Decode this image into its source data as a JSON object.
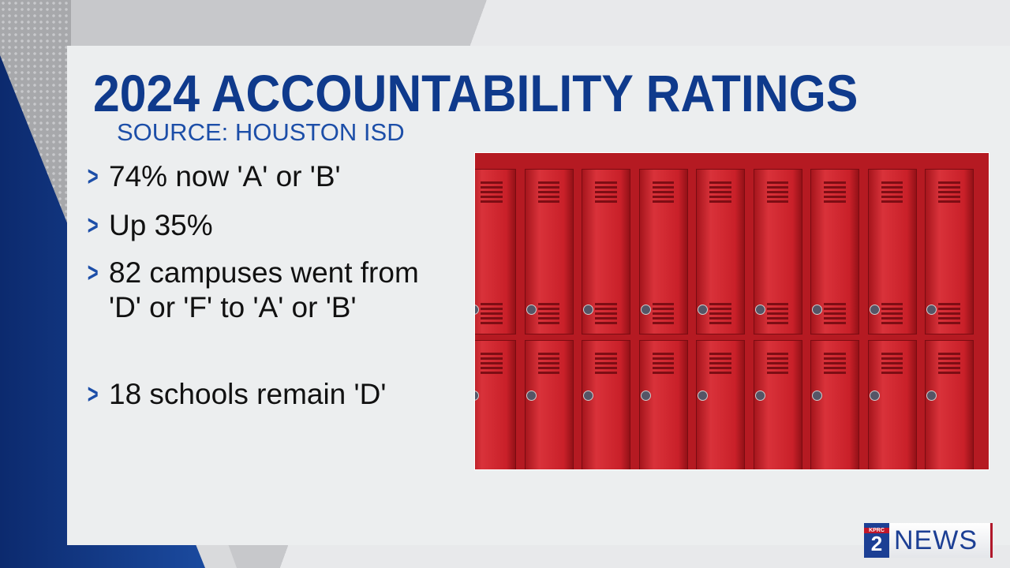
{
  "graphic": {
    "title": "2024 ACCOUNTABILITY RATINGS",
    "source": "SOURCE: HOUSTON ISD",
    "bullets": [
      "74% now 'A' or 'B'",
      "Up 35%",
      "82 campuses went from 'D' or 'F' to 'A' or 'B'",
      "18 schools remain 'D'"
    ],
    "bullet_icon": "chevron-right-icon",
    "photo": "red school lockers",
    "colors": {
      "title": "#0f3a8c",
      "source": "#1c4ea8",
      "lockers": "#c92029"
    }
  },
  "logo": {
    "station": "KPRC",
    "channel": "2",
    "brand": "NEWS"
  }
}
